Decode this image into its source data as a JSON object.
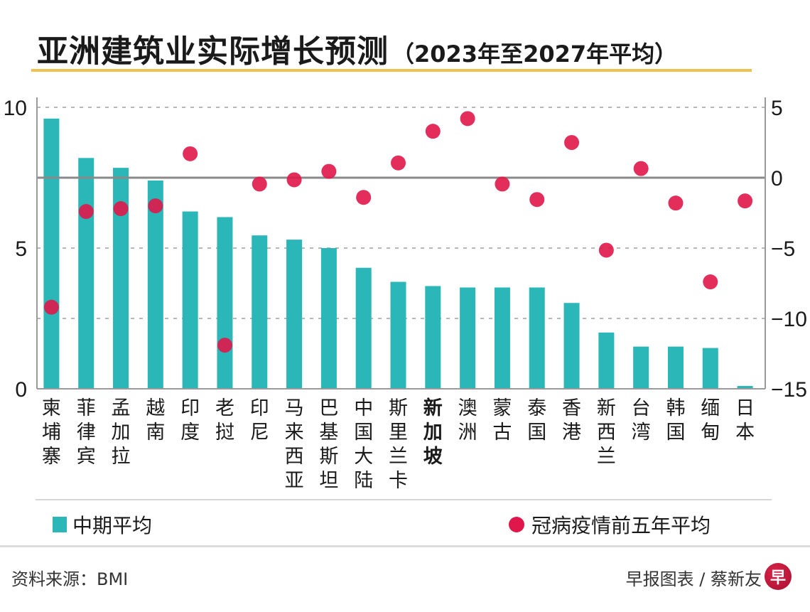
{
  "header": {
    "title": "亚洲建筑业实际增长预测",
    "subtitle": "（2023年至2027年平均）"
  },
  "legend": {
    "bar_label": "中期平均",
    "dot_label": "冠病疫情前五年平均"
  },
  "footer": {
    "source": "资料来源：BMI",
    "credit": "早报图表 / 蔡新友",
    "logo_glyph": "早"
  },
  "colors": {
    "bar": "#2bb6b8",
    "dot": "#e0174a",
    "accent_rule": "#f0c050",
    "zero_line": "#8a8a8a"
  },
  "chart_data": {
    "type": "bar",
    "title": "亚洲建筑业实际增长预测（2023年至2027年平均）",
    "xlabel": "",
    "ylabel": "",
    "categories": [
      "柬埔寨",
      "菲律宾",
      "孟加拉",
      "越南",
      "印度",
      "老挝",
      "印尼",
      "马来西亚",
      "巴基斯坦",
      "中国大陆",
      "斯里兰卡",
      "新加坡",
      "澳洲",
      "蒙古",
      "泰国",
      "香港",
      "新西兰",
      "台湾",
      "韩国",
      "缅甸",
      "日本"
    ],
    "highlight_category": "新加坡",
    "left_axis": {
      "ylim": [
        0,
        10
      ],
      "ticks": [
        0,
        5,
        10
      ],
      "tick_labels": [
        "0",
        "5",
        "10"
      ]
    },
    "right_axis": {
      "ylim": [
        -15,
        5
      ],
      "ticks": [
        -15,
        -10,
        -5,
        0,
        5
      ],
      "tick_labels": [
        "−15",
        "−10",
        "−5",
        "0",
        "5"
      ]
    },
    "grid": true,
    "legend_position": "bottom",
    "series": [
      {
        "name": "中期平均",
        "type": "bar",
        "axis": "left",
        "values": [
          9.6,
          8.2,
          7.85,
          7.4,
          6.3,
          6.1,
          5.45,
          5.3,
          5.0,
          4.3,
          3.8,
          3.65,
          3.6,
          3.6,
          3.6,
          3.05,
          2.0,
          1.5,
          1.5,
          1.45,
          0.1
        ]
      },
      {
        "name": "冠病疫情前五年平均",
        "type": "scatter",
        "axis": "right",
        "values": [
          -9.2,
          -2.4,
          -2.2,
          -2.0,
          1.7,
          -11.9,
          -0.45,
          -0.15,
          0.45,
          -1.4,
          1.05,
          3.3,
          4.2,
          -0.45,
          -1.55,
          2.5,
          -5.15,
          0.65,
          -1.8,
          -7.4,
          -1.65
        ]
      }
    ]
  }
}
